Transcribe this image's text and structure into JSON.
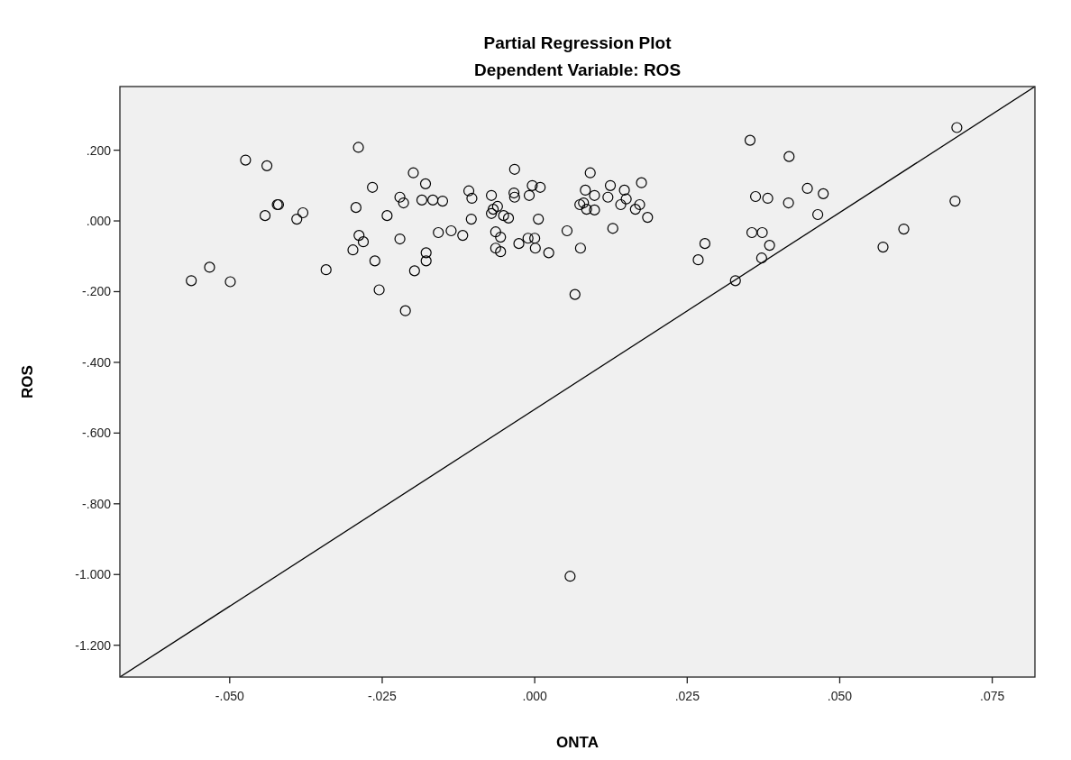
{
  "chart_data": {
    "type": "scatter",
    "title": "Partial Regression Plot",
    "subtitle": "Dependent Variable: ROS",
    "xlabel": "ONTA",
    "ylabel": "ROS",
    "xlim": [
      -0.068,
      0.082
    ],
    "ylim": [
      -1.29,
      0.38
    ],
    "xticks": [
      {
        "value": -0.05,
        "label": "-.050"
      },
      {
        "value": -0.025,
        "label": "-.025"
      },
      {
        "value": 0,
        "label": ".000"
      },
      {
        "value": 0.025,
        "label": ".025"
      },
      {
        "value": 0.05,
        "label": ".050"
      },
      {
        "value": 0.075,
        "label": ".075"
      }
    ],
    "yticks": [
      {
        "value": 0.2,
        "label": ".200"
      },
      {
        "value": 0,
        "label": ".000"
      },
      {
        "value": -0.2,
        "label": "-.200"
      },
      {
        "value": -0.4,
        "label": "-.400"
      },
      {
        "value": -0.6,
        "label": "-.600"
      },
      {
        "value": -0.8,
        "label": "-.800"
      },
      {
        "value": -1,
        "label": "-1.000"
      },
      {
        "value": -1.2,
        "label": "-1.200"
      }
    ],
    "grid": false,
    "series": [
      {
        "color": "#000000",
        "marker": "circle",
        "x": [
          -0.0563,
          -0.0533,
          -0.0499,
          -0.0474,
          -0.0439,
          -0.0442,
          -0.0422,
          -0.042,
          -0.039,
          -0.038,
          -0.0342,
          -0.0298,
          -0.0293,
          -0.0289,
          -0.0288,
          -0.0281,
          -0.0266,
          -0.0262,
          -0.0255,
          -0.0242,
          -0.0221,
          -0.0221,
          -0.0215,
          -0.0212,
          -0.0199,
          -0.0197,
          -0.0185,
          -0.0179,
          -0.0178,
          -0.0178,
          -0.0167,
          -0.0158,
          -0.0151,
          -0.0137,
          -0.0118,
          -0.0108,
          -0.0104,
          -0.0103,
          -0.0071,
          -0.0071,
          -0.0068,
          -0.0064,
          -0.0061,
          -0.0064,
          -0.0056,
          -0.0056,
          -0.0051,
          -0.0043,
          -0.0034,
          -0.0033,
          -0.0033,
          -0.0026,
          -0.0009,
          -0.0011,
          -0.0004,
          0,
          0.0001,
          0.0009,
          0.0006,
          0.0023,
          0.0053,
          0.0066,
          0.0058,
          0.0075,
          0.0074,
          0.008,
          0.0083,
          0.0085,
          0.0091,
          0.0098,
          0.0098,
          0.012,
          0.0124,
          0.0128,
          0.0141,
          0.0147,
          0.015,
          0.0165,
          0.0172,
          0.0175,
          0.0185,
          0.0268,
          0.0279,
          0.0329,
          0.0353,
          0.0356,
          0.0362,
          0.0372,
          0.0373,
          0.0382,
          0.0385,
          0.0416,
          0.0417,
          0.0447,
          0.0464,
          0.0473,
          0.0571,
          0.0605,
          0.0689,
          0.0692
        ],
        "values": [
          -0.169,
          -0.131,
          -0.172,
          0.172,
          0.156,
          0.015,
          0.046,
          0.046,
          0.005,
          0.023,
          -0.138,
          -0.082,
          0.038,
          0.208,
          -0.041,
          -0.059,
          0.095,
          -0.113,
          -0.195,
          0.015,
          -0.051,
          0.067,
          0.051,
          -0.254,
          0.136,
          -0.141,
          0.059,
          0.105,
          -0.09,
          -0.113,
          0.059,
          -0.033,
          0.056,
          -0.028,
          -0.041,
          0.085,
          0.005,
          0.064,
          0.072,
          0.021,
          0.033,
          -0.031,
          0.041,
          -0.077,
          -0.046,
          -0.087,
          0.015,
          0.008,
          0.079,
          0.146,
          0.067,
          -0.064,
          0.072,
          -0.049,
          0.1,
          -0.049,
          -0.077,
          0.095,
          0.005,
          -0.09,
          -0.028,
          -0.208,
          -1.005,
          -0.077,
          0.046,
          0.051,
          0.087,
          0.033,
          0.136,
          0.072,
          0.031,
          0.067,
          0.1,
          -0.021,
          0.046,
          0.087,
          0.062,
          0.033,
          0.046,
          0.108,
          0.01,
          -0.11,
          -0.064,
          -0.169,
          0.228,
          -0.033,
          0.069,
          -0.105,
          -0.033,
          0.064,
          -0.069,
          0.051,
          0.182,
          0.092,
          0.018,
          0.077,
          -0.074,
          -0.023,
          0.056,
          0.264
        ]
      },
      {
        "type": "line",
        "color": "#000000",
        "x": [
          -0.068,
          0.082
        ],
        "values": [
          -1.29,
          0.38
        ]
      }
    ]
  }
}
